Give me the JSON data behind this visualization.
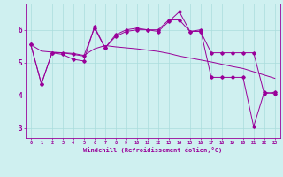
{
  "xlabel": "Windchill (Refroidissement éolien,°C)",
  "background_color": "#cff0f0",
  "line_color": "#990099",
  "grid_color": "#aadddd",
  "xlim": [
    -0.5,
    23.5
  ],
  "ylim": [
    2.7,
    6.8
  ],
  "xticks": [
    0,
    1,
    2,
    3,
    4,
    5,
    6,
    7,
    8,
    9,
    10,
    11,
    12,
    13,
    14,
    15,
    16,
    17,
    18,
    19,
    20,
    21,
    22,
    23
  ],
  "yticks": [
    3,
    4,
    5,
    6
  ],
  "line1_x": [
    0,
    1,
    2,
    3,
    4,
    5,
    6,
    7,
    8,
    9,
    10,
    11,
    12,
    13,
    14,
    15,
    16,
    17,
    18,
    19,
    20,
    21,
    22,
    23
  ],
  "line1_y": [
    5.55,
    4.35,
    5.3,
    5.3,
    5.25,
    5.2,
    6.05,
    5.45,
    5.85,
    6.0,
    6.05,
    6.0,
    6.0,
    6.3,
    6.3,
    5.95,
    5.95,
    5.3,
    5.3,
    5.3,
    5.3,
    5.3,
    4.05,
    4.1
  ],
  "line2_x": [
    0,
    1,
    2,
    3,
    4,
    5,
    6,
    7,
    8,
    9,
    10,
    11,
    12,
    13,
    14,
    15,
    16,
    17,
    18,
    19,
    20,
    21,
    22,
    23
  ],
  "line2_y": [
    5.55,
    4.35,
    5.3,
    5.25,
    5.1,
    5.05,
    6.1,
    5.45,
    5.8,
    5.95,
    6.0,
    6.0,
    5.95,
    6.25,
    6.55,
    5.95,
    6.0,
    4.55,
    4.55,
    4.55,
    4.55,
    3.05,
    4.1,
    4.05
  ],
  "line3_x": [
    0,
    1,
    2,
    3,
    4,
    5,
    6,
    7,
    8,
    9,
    10,
    11,
    12,
    13,
    14,
    15,
    16,
    17,
    18,
    19,
    20,
    21,
    22,
    23
  ],
  "line3_y": [
    5.55,
    5.35,
    5.32,
    5.3,
    5.28,
    5.22,
    5.42,
    5.52,
    5.48,
    5.45,
    5.42,
    5.38,
    5.34,
    5.28,
    5.2,
    5.14,
    5.08,
    5.02,
    4.95,
    4.88,
    4.82,
    4.72,
    4.62,
    4.52
  ]
}
